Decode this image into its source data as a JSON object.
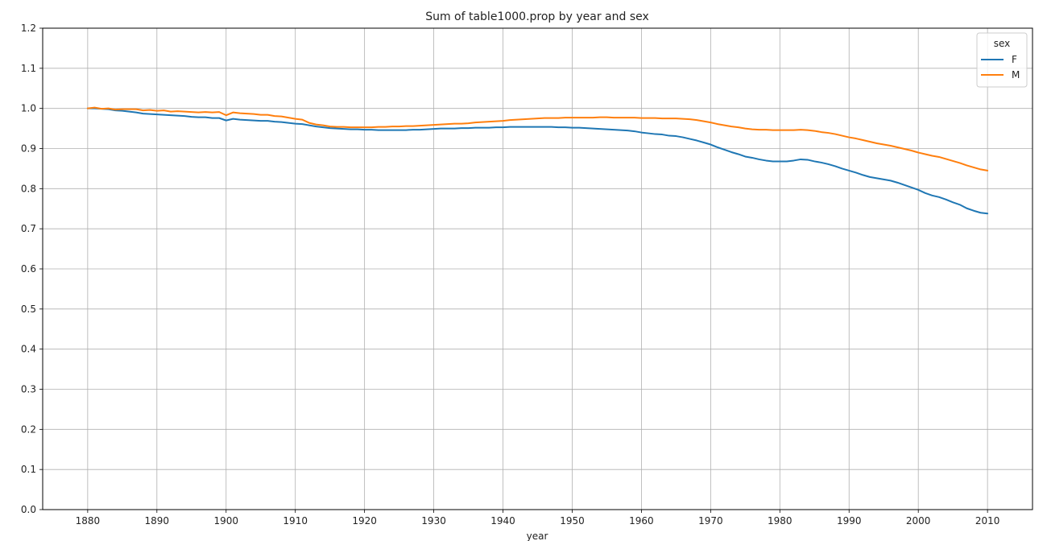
{
  "chart_data": {
    "type": "line",
    "title": "Sum of table1000.prop by year and sex",
    "xlabel": "year",
    "ylabel": "",
    "xlim": [
      1873.5,
      2016.5
    ],
    "ylim": [
      0.0,
      1.2
    ],
    "xticks": [
      1880,
      1890,
      1900,
      1910,
      1920,
      1930,
      1940,
      1950,
      1960,
      1970,
      1980,
      1990,
      2000,
      2010
    ],
    "yticks": [
      0.0,
      0.1,
      0.2,
      0.3,
      0.4,
      0.5,
      0.6,
      0.7,
      0.8,
      0.9,
      1.0,
      1.1,
      1.2
    ],
    "ytick_labels": [
      "0.0",
      "0.1",
      "0.2",
      "0.3",
      "0.4",
      "0.5",
      "0.6",
      "0.7",
      "0.8",
      "0.9",
      "1.0",
      "1.1",
      "1.2"
    ],
    "grid": true,
    "legend": {
      "title": "sex",
      "placement": "top-right"
    },
    "series": [
      {
        "name": "F",
        "color": "#1f77b4",
        "points": [
          [
            1880,
            1.0
          ],
          [
            1881,
            1.0
          ],
          [
            1882,
            0.999
          ],
          [
            1883,
            0.998
          ],
          [
            1884,
            0.995
          ],
          [
            1885,
            0.994
          ],
          [
            1886,
            0.992
          ],
          [
            1887,
            0.99
          ],
          [
            1888,
            0.987
          ],
          [
            1889,
            0.986
          ],
          [
            1890,
            0.985
          ],
          [
            1891,
            0.984
          ],
          [
            1892,
            0.983
          ],
          [
            1893,
            0.982
          ],
          [
            1894,
            0.981
          ],
          [
            1895,
            0.979
          ],
          [
            1896,
            0.978
          ],
          [
            1897,
            0.978
          ],
          [
            1898,
            0.976
          ],
          [
            1899,
            0.976
          ],
          [
            1900,
            0.97
          ],
          [
            1901,
            0.974
          ],
          [
            1902,
            0.972
          ],
          [
            1903,
            0.971
          ],
          [
            1904,
            0.97
          ],
          [
            1905,
            0.969
          ],
          [
            1906,
            0.969
          ],
          [
            1907,
            0.967
          ],
          [
            1908,
            0.966
          ],
          [
            1909,
            0.964
          ],
          [
            1910,
            0.962
          ],
          [
            1911,
            0.961
          ],
          [
            1912,
            0.958
          ],
          [
            1913,
            0.955
          ],
          [
            1914,
            0.953
          ],
          [
            1915,
            0.951
          ],
          [
            1916,
            0.95
          ],
          [
            1917,
            0.949
          ],
          [
            1918,
            0.948
          ],
          [
            1919,
            0.948
          ],
          [
            1920,
            0.947
          ],
          [
            1921,
            0.947
          ],
          [
            1922,
            0.946
          ],
          [
            1923,
            0.946
          ],
          [
            1924,
            0.946
          ],
          [
            1925,
            0.946
          ],
          [
            1926,
            0.946
          ],
          [
            1927,
            0.947
          ],
          [
            1928,
            0.947
          ],
          [
            1929,
            0.948
          ],
          [
            1930,
            0.949
          ],
          [
            1931,
            0.95
          ],
          [
            1932,
            0.95
          ],
          [
            1933,
            0.95
          ],
          [
            1934,
            0.951
          ],
          [
            1935,
            0.951
          ],
          [
            1936,
            0.952
          ],
          [
            1937,
            0.952
          ],
          [
            1938,
            0.952
          ],
          [
            1939,
            0.953
          ],
          [
            1940,
            0.953
          ],
          [
            1941,
            0.954
          ],
          [
            1942,
            0.954
          ],
          [
            1943,
            0.954
          ],
          [
            1944,
            0.954
          ],
          [
            1945,
            0.954
          ],
          [
            1946,
            0.954
          ],
          [
            1947,
            0.954
          ],
          [
            1948,
            0.953
          ],
          [
            1949,
            0.953
          ],
          [
            1950,
            0.952
          ],
          [
            1951,
            0.952
          ],
          [
            1952,
            0.951
          ],
          [
            1953,
            0.95
          ],
          [
            1954,
            0.949
          ],
          [
            1955,
            0.948
          ],
          [
            1956,
            0.947
          ],
          [
            1957,
            0.946
          ],
          [
            1958,
            0.945
          ],
          [
            1959,
            0.943
          ],
          [
            1960,
            0.94
          ],
          [
            1961,
            0.938
          ],
          [
            1962,
            0.936
          ],
          [
            1963,
            0.935
          ],
          [
            1964,
            0.932
          ],
          [
            1965,
            0.931
          ],
          [
            1966,
            0.928
          ],
          [
            1967,
            0.924
          ],
          [
            1968,
            0.92
          ],
          [
            1969,
            0.915
          ],
          [
            1970,
            0.91
          ],
          [
            1971,
            0.903
          ],
          [
            1972,
            0.897
          ],
          [
            1973,
            0.891
          ],
          [
            1974,
            0.886
          ],
          [
            1975,
            0.88
          ],
          [
            1976,
            0.877
          ],
          [
            1977,
            0.873
          ],
          [
            1978,
            0.87
          ],
          [
            1979,
            0.868
          ],
          [
            1980,
            0.868
          ],
          [
            1981,
            0.868
          ],
          [
            1982,
            0.87
          ],
          [
            1983,
            0.873
          ],
          [
            1984,
            0.872
          ],
          [
            1985,
            0.868
          ],
          [
            1986,
            0.865
          ],
          [
            1987,
            0.861
          ],
          [
            1988,
            0.856
          ],
          [
            1989,
            0.85
          ],
          [
            1990,
            0.845
          ],
          [
            1991,
            0.84
          ],
          [
            1992,
            0.834
          ],
          [
            1993,
            0.829
          ],
          [
            1994,
            0.826
          ],
          [
            1995,
            0.823
          ],
          [
            1996,
            0.82
          ],
          [
            1997,
            0.815
          ],
          [
            1998,
            0.809
          ],
          [
            1999,
            0.803
          ],
          [
            2000,
            0.797
          ],
          [
            2001,
            0.789
          ],
          [
            2002,
            0.783
          ],
          [
            2003,
            0.779
          ],
          [
            2004,
            0.773
          ],
          [
            2005,
            0.766
          ],
          [
            2006,
            0.76
          ],
          [
            2007,
            0.751
          ],
          [
            2008,
            0.745
          ],
          [
            2009,
            0.74
          ],
          [
            2010,
            0.738
          ]
        ]
      },
      {
        "name": "M",
        "color": "#ff7f0e",
        "points": [
          [
            1880,
            1.0
          ],
          [
            1881,
            1.002
          ],
          [
            1882,
            0.999
          ],
          [
            1883,
            1.0
          ],
          [
            1884,
            0.997
          ],
          [
            1885,
            0.998
          ],
          [
            1886,
            0.998
          ],
          [
            1887,
            0.998
          ],
          [
            1888,
            0.995
          ],
          [
            1889,
            0.996
          ],
          [
            1890,
            0.994
          ],
          [
            1891,
            0.995
          ],
          [
            1892,
            0.992
          ],
          [
            1893,
            0.993
          ],
          [
            1894,
            0.992
          ],
          [
            1895,
            0.991
          ],
          [
            1896,
            0.99
          ],
          [
            1897,
            0.991
          ],
          [
            1898,
            0.99
          ],
          [
            1899,
            0.991
          ],
          [
            1900,
            0.983
          ],
          [
            1901,
            0.99
          ],
          [
            1902,
            0.988
          ],
          [
            1903,
            0.987
          ],
          [
            1904,
            0.986
          ],
          [
            1905,
            0.984
          ],
          [
            1906,
            0.984
          ],
          [
            1907,
            0.981
          ],
          [
            1908,
            0.98
          ],
          [
            1909,
            0.977
          ],
          [
            1910,
            0.974
          ],
          [
            1911,
            0.972
          ],
          [
            1912,
            0.964
          ],
          [
            1913,
            0.96
          ],
          [
            1914,
            0.958
          ],
          [
            1915,
            0.955
          ],
          [
            1916,
            0.954
          ],
          [
            1917,
            0.954
          ],
          [
            1918,
            0.953
          ],
          [
            1919,
            0.953
          ],
          [
            1920,
            0.953
          ],
          [
            1921,
            0.953
          ],
          [
            1922,
            0.954
          ],
          [
            1923,
            0.954
          ],
          [
            1924,
            0.955
          ],
          [
            1925,
            0.955
          ],
          [
            1926,
            0.956
          ],
          [
            1927,
            0.956
          ],
          [
            1928,
            0.957
          ],
          [
            1929,
            0.958
          ],
          [
            1930,
            0.959
          ],
          [
            1931,
            0.96
          ],
          [
            1932,
            0.961
          ],
          [
            1933,
            0.962
          ],
          [
            1934,
            0.962
          ],
          [
            1935,
            0.963
          ],
          [
            1936,
            0.965
          ],
          [
            1937,
            0.966
          ],
          [
            1938,
            0.967
          ],
          [
            1939,
            0.968
          ],
          [
            1940,
            0.969
          ],
          [
            1941,
            0.971
          ],
          [
            1942,
            0.972
          ],
          [
            1943,
            0.973
          ],
          [
            1944,
            0.974
          ],
          [
            1945,
            0.975
          ],
          [
            1946,
            0.976
          ],
          [
            1947,
            0.976
          ],
          [
            1948,
            0.976
          ],
          [
            1949,
            0.977
          ],
          [
            1950,
            0.977
          ],
          [
            1951,
            0.977
          ],
          [
            1952,
            0.977
          ],
          [
            1953,
            0.977
          ],
          [
            1954,
            0.978
          ],
          [
            1955,
            0.978
          ],
          [
            1956,
            0.977
          ],
          [
            1957,
            0.977
          ],
          [
            1958,
            0.977
          ],
          [
            1959,
            0.977
          ],
          [
            1960,
            0.976
          ],
          [
            1961,
            0.976
          ],
          [
            1962,
            0.976
          ],
          [
            1963,
            0.975
          ],
          [
            1964,
            0.975
          ],
          [
            1965,
            0.975
          ],
          [
            1966,
            0.974
          ],
          [
            1967,
            0.973
          ],
          [
            1968,
            0.971
          ],
          [
            1969,
            0.968
          ],
          [
            1970,
            0.965
          ],
          [
            1971,
            0.961
          ],
          [
            1972,
            0.958
          ],
          [
            1973,
            0.955
          ],
          [
            1974,
            0.953
          ],
          [
            1975,
            0.95
          ],
          [
            1976,
            0.948
          ],
          [
            1977,
            0.947
          ],
          [
            1978,
            0.947
          ],
          [
            1979,
            0.946
          ],
          [
            1980,
            0.946
          ],
          [
            1981,
            0.946
          ],
          [
            1982,
            0.946
          ],
          [
            1983,
            0.947
          ],
          [
            1984,
            0.946
          ],
          [
            1985,
            0.944
          ],
          [
            1986,
            0.941
          ],
          [
            1987,
            0.939
          ],
          [
            1988,
            0.936
          ],
          [
            1989,
            0.932
          ],
          [
            1990,
            0.928
          ],
          [
            1991,
            0.925
          ],
          [
            1992,
            0.921
          ],
          [
            1993,
            0.917
          ],
          [
            1994,
            0.913
          ],
          [
            1995,
            0.91
          ],
          [
            1996,
            0.907
          ],
          [
            1997,
            0.903
          ],
          [
            1998,
            0.899
          ],
          [
            1999,
            0.895
          ],
          [
            2000,
            0.89
          ],
          [
            2001,
            0.886
          ],
          [
            2002,
            0.882
          ],
          [
            2003,
            0.879
          ],
          [
            2004,
            0.874
          ],
          [
            2005,
            0.869
          ],
          [
            2006,
            0.864
          ],
          [
            2007,
            0.858
          ],
          [
            2008,
            0.853
          ],
          [
            2009,
            0.848
          ],
          [
            2010,
            0.845
          ]
        ]
      }
    ]
  }
}
